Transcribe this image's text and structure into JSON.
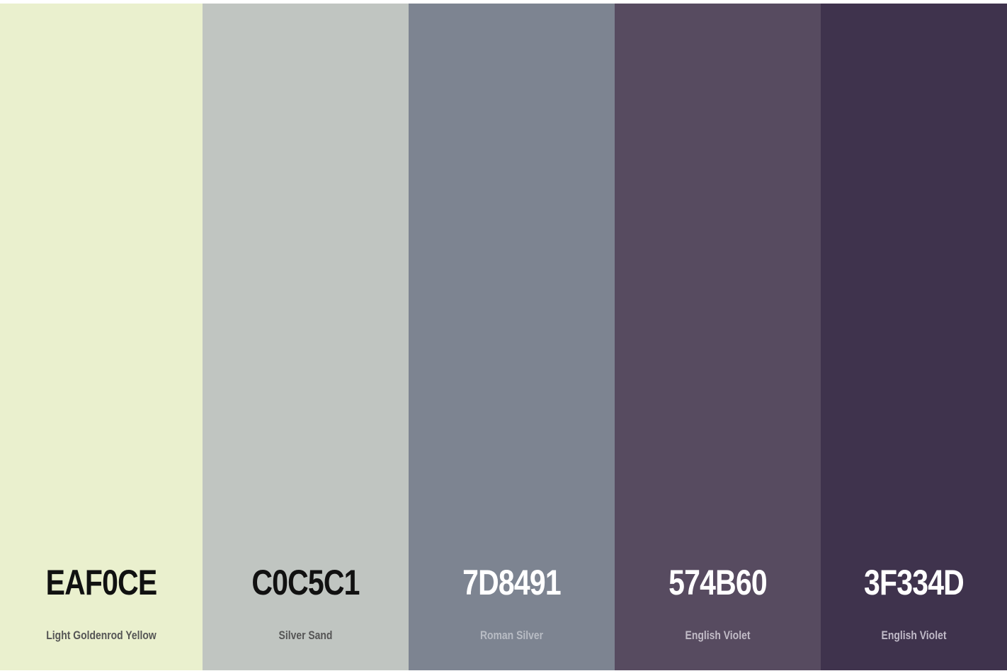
{
  "swatches": [
    {
      "hex": "EAF0CE",
      "name": "Light Goldenrod Yellow",
      "color": "#EAF0CE",
      "hex_text_color": "#111111",
      "name_text_color": "#555555"
    },
    {
      "hex": "C0C5C1",
      "name": "Silver Sand",
      "color": "#C0C5C1",
      "hex_text_color": "#111111",
      "name_text_color": "#555555"
    },
    {
      "hex": "7D8491",
      "name": "Roman Silver",
      "color": "#7D8491",
      "hex_text_color": "#ffffff",
      "name_text_color": "#b8bcc4"
    },
    {
      "hex": "574B60",
      "name": "English Violet",
      "color": "#574B60",
      "hex_text_color": "#ffffff",
      "name_text_color": "#c2bcc7"
    },
    {
      "hex": "3F334D",
      "name": "English Violet",
      "color": "#3F334D",
      "hex_text_color": "#ffffff",
      "name_text_color": "#c0bac8"
    }
  ]
}
